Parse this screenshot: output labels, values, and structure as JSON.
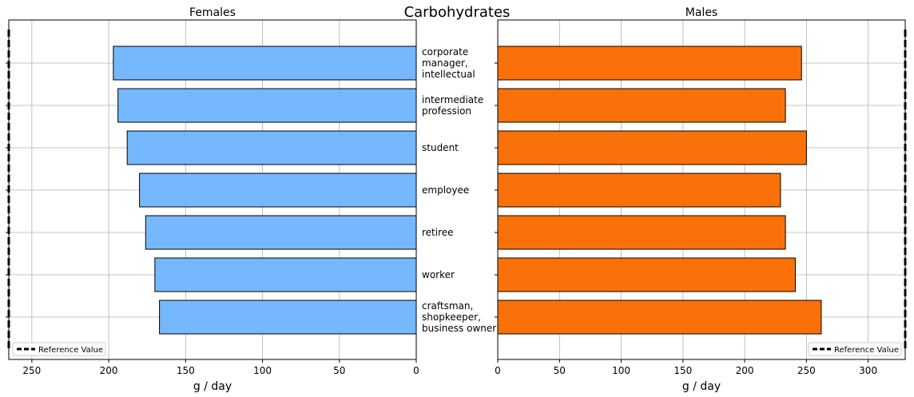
{
  "chart_data": {
    "type": "bar",
    "title": "Carbohydrates",
    "categories": [
      "corporate manager, intellectual",
      "intermediate profession",
      "student",
      "employee",
      "retiree",
      "worker",
      "craftsman, shopkeeper, business owner"
    ],
    "category_label_lines": [
      [
        "corporate",
        "manager,",
        "intellectual"
      ],
      [
        "intermediate",
        "profession"
      ],
      [
        "student"
      ],
      [
        "employee"
      ],
      [
        "retiree"
      ],
      [
        "worker"
      ],
      [
        "craftsman,",
        "shopkeeper,",
        "business owner"
      ]
    ],
    "panels": [
      {
        "title": "Females",
        "xlabel": "g / day",
        "orientation": "reversed",
        "xlim": [
          0,
          265
        ],
        "xticks": [
          0,
          50,
          100,
          150,
          200,
          250
        ],
        "xtick_labels": [
          "0",
          "50",
          "100",
          "150",
          "200",
          "250"
        ],
        "series": [
          {
            "values": [
              197,
              194,
              188,
              180,
              176,
              170,
              167
            ],
            "color": "#75b8fd"
          }
        ],
        "reference_value": 265,
        "legend": {
          "label": "Reference Value",
          "location": "lower left"
        },
        "grid": true
      },
      {
        "title": "Males",
        "xlabel": "g / day",
        "orientation": "normal",
        "xlim": [
          0,
          330
        ],
        "xticks": [
          0,
          50,
          100,
          150,
          200,
          250,
          300
        ],
        "xtick_labels": [
          "0",
          "50",
          "100",
          "150",
          "200",
          "250",
          "300"
        ],
        "series": [
          {
            "values": [
              246,
              233,
              250,
              229,
              233,
              241,
              262
            ],
            "color": "#fb7109"
          }
        ],
        "reference_value": 330,
        "legend": {
          "label": "Reference Value",
          "location": "lower right"
        },
        "grid": true
      }
    ]
  }
}
